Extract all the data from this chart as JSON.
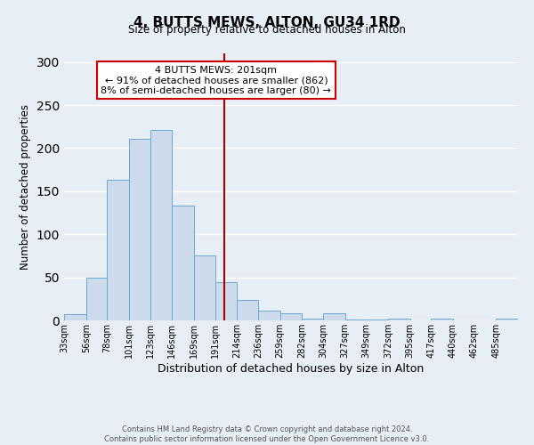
{
  "title": "4, BUTTS MEWS, ALTON, GU34 1RD",
  "subtitle": "Size of property relative to detached houses in Alton",
  "xlabel": "Distribution of detached houses by size in Alton",
  "ylabel": "Number of detached properties",
  "bar_values": [
    7,
    50,
    163,
    211,
    221,
    133,
    75,
    44,
    24,
    11,
    8,
    2,
    8,
    1,
    1,
    2,
    0,
    2,
    0,
    0,
    2
  ],
  "bin_edges": [
    33,
    56,
    78,
    101,
    123,
    146,
    169,
    191,
    214,
    236,
    259,
    282,
    304,
    327,
    349,
    372,
    395,
    417,
    440,
    462,
    485
  ],
  "bin_labels": [
    "33sqm",
    "56sqm",
    "78sqm",
    "101sqm",
    "123sqm",
    "146sqm",
    "169sqm",
    "191sqm",
    "214sqm",
    "236sqm",
    "259sqm",
    "282sqm",
    "304sqm",
    "327sqm",
    "349sqm",
    "372sqm",
    "395sqm",
    "417sqm",
    "440sqm",
    "462sqm",
    "485sqm"
  ],
  "bar_color": "#ccdaeb",
  "bar_edge_color": "#6aaad4",
  "property_line_x": 201,
  "property_line_color": "#aa0000",
  "annotation_title": "4 BUTTS MEWS: 201sqm",
  "annotation_line1": "← 91% of detached houses are smaller (862)",
  "annotation_line2": "8% of semi-detached houses are larger (80) →",
  "annotation_box_color": "#cc0000",
  "ylim": [
    0,
    310
  ],
  "footer1": "Contains HM Land Registry data © Crown copyright and database right 2024.",
  "footer2": "Contains public sector information licensed under the Open Government Licence v3.0.",
  "bg_color": "#e8eef5"
}
